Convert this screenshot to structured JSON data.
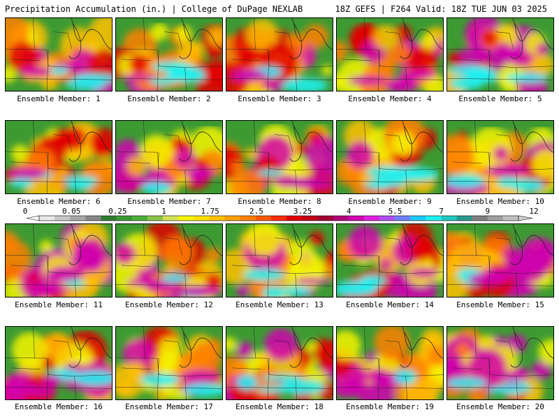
{
  "header": {
    "left": "Precipitation Accumulation (in.) | College of DuPage NEXLAB",
    "right": "18Z GEFS | F264 Valid: 18Z TUE JUN 03 2025"
  },
  "members": [
    {
      "label": "Ensemble Member: 1"
    },
    {
      "label": "Ensemble Member: 2"
    },
    {
      "label": "Ensemble Member: 3"
    },
    {
      "label": "Ensemble Member: 4"
    },
    {
      "label": "Ensemble Member: 5"
    },
    {
      "label": "Ensemble Member: 6"
    },
    {
      "label": "Ensemble Member: 7"
    },
    {
      "label": "Ensemble Member: 8"
    },
    {
      "label": "Ensemble Member: 9"
    },
    {
      "label": "Ensemble Member: 10"
    },
    {
      "label": "Ensemble Member: 11"
    },
    {
      "label": "Ensemble Member: 12"
    },
    {
      "label": "Ensemble Member: 13"
    },
    {
      "label": "Ensemble Member: 14"
    },
    {
      "label": "Ensemble Member: 15"
    },
    {
      "label": "Ensemble Member: 16"
    },
    {
      "label": "Ensemble Member: 17"
    },
    {
      "label": "Ensemble Member: 18"
    },
    {
      "label": "Ensemble Member: 19"
    },
    {
      "label": "Ensemble Member: 20"
    }
  ],
  "colorbar": {
    "labels": [
      "0",
      "0.05",
      "0.25",
      "1",
      "1.75",
      "2.5",
      "3.25",
      "4",
      "5.5",
      "7",
      "9",
      "12"
    ],
    "colors": [
      "#e8e8e8",
      "#c8c8c8",
      "#a8a8a8",
      "#888888",
      "#2e7d32",
      "#3a9a34",
      "#4caf3a",
      "#8bc34a",
      "#d4e157",
      "#f5f500",
      "#ffe000",
      "#ffc000",
      "#ffa000",
      "#ff7f00",
      "#ff5a00",
      "#ff2a00",
      "#e00000",
      "#c00018",
      "#a00030",
      "#b0007a",
      "#d000b0",
      "#e020e0",
      "#b050f0",
      "#7080ff",
      "#20c8ff",
      "#20f0f0",
      "#20c8c0",
      "#2a9a90",
      "#808080",
      "#a0a0a0",
      "#c0c0c0"
    ]
  }
}
